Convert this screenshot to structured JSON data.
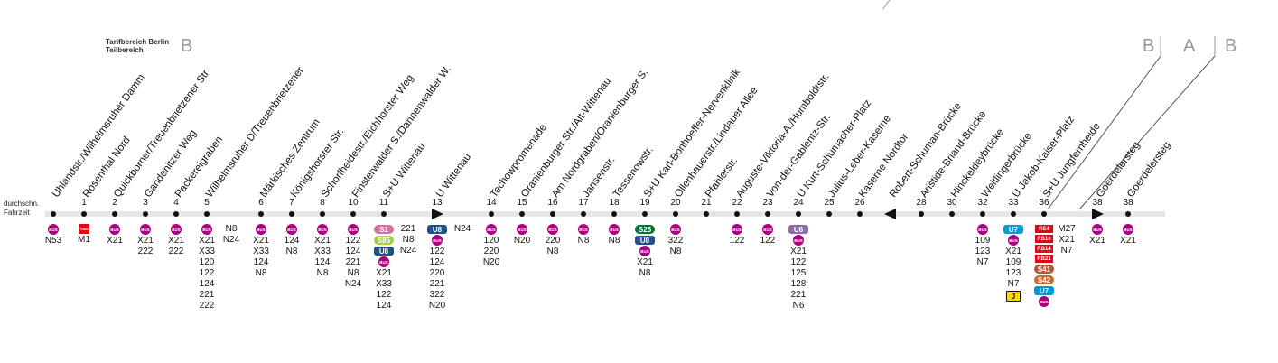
{
  "zone_label": {
    "line1": "Tarifbereich Berlin",
    "line2": "Teilbereich",
    "zone": "B"
  },
  "zone_markers": [
    "B",
    "A",
    "B"
  ],
  "side_label": {
    "line1": "durchschn.",
    "line2": "Fahrzeit"
  },
  "colors": {
    "bus": "#a5027d",
    "tram": "#e30613",
    "ubahn_u8": "#224f86",
    "ubahn_u7": "#009bd5",
    "ubahn_u6": "#8c6dab",
    "s1": "#dc6ba6",
    "s85": "#a6ce42",
    "s25": "#007734",
    "s41": "#ad5937",
    "s42": "#cc6a30",
    "rail": "#e30613",
    "j": "#ffd800"
  },
  "stops": [
    {
      "name": "Uhlandstr./Wilhelmsruher Damm",
      "time": ""
    },
    {
      "name": "Rosenthal Nord",
      "time": "1"
    },
    {
      "name": "Quickborner/Treuenbrietzener Str",
      "time": "2"
    },
    {
      "name": "Gandenitzer Weg",
      "time": "3"
    },
    {
      "name": "Packereigraben",
      "time": "4"
    },
    {
      "name": "Wilhelmsruher D/Treuenbrietzener",
      "time": "5"
    },
    {
      "name": "Märkisches Zentrum",
      "time": "6"
    },
    {
      "name": "Königshorster Str.",
      "time": "7"
    },
    {
      "name": "Schorfheidestr./Eichhorster Weg",
      "time": "8"
    },
    {
      "name": "Finsterwalder S./Dannenwalder W.",
      "time": "10"
    },
    {
      "name": "S+U Wittenau",
      "time": "11"
    },
    {
      "name": "U Wittenau",
      "time": "13"
    },
    {
      "name": "Techowpromenade",
      "time": "14"
    },
    {
      "name": "Oranienburger Str./Alt-Wittenau",
      "time": "15"
    },
    {
      "name": "Am Nordgraben/Oranienburger S.",
      "time": "16"
    },
    {
      "name": "Jansenstr.",
      "time": "17"
    },
    {
      "name": "Tessenowstr.",
      "time": "18"
    },
    {
      "name": "S+U Karl-Bonhoeffer-Nervenklinik",
      "time": "19"
    },
    {
      "name": "Ollenhauerstr./Lindauer Allee",
      "time": "20"
    },
    {
      "name": "Pfahlerstr.",
      "time": "21"
    },
    {
      "name": "Auguste-Viktoria-A./Humboldtstr.",
      "time": "22"
    },
    {
      "name": "Von-der-Gablentz-Str.",
      "time": "23"
    },
    {
      "name": "U Kurt-Schumacher-Platz",
      "time": "24"
    },
    {
      "name": "Julius-Leber-Kaserne",
      "time": "25"
    },
    {
      "name": "Kaserne Nordtor",
      "time": "26"
    },
    {
      "name": "Robert-Schuman-Brücke",
      "time": ""
    },
    {
      "name": "Aristide-Briand-Brücke",
      "time": "28"
    },
    {
      "name": "Hinckeldeybrücke",
      "time": "30"
    },
    {
      "name": "Weltlingerbrücke",
      "time": "32"
    },
    {
      "name": "U Jakob-Kaiser-Platz",
      "time": "33"
    },
    {
      "name": "S+U Jungfernheide",
      "time": "36"
    },
    {
      "name": "Goerdelersteg",
      "time": "38"
    },
    {
      "name": "Goerdelersteg",
      "time": "38"
    }
  ],
  "connections": {
    "s0": [
      "N53"
    ],
    "s1": [
      "M1"
    ],
    "s2": [
      "X21"
    ],
    "s3": [
      "X21",
      "222"
    ],
    "s4": [
      "X21",
      "222"
    ],
    "s5": [
      "X21",
      "X33",
      "120",
      "122",
      "124",
      "221",
      "222"
    ],
    "s5b": [
      "N8",
      "N24"
    ],
    "s6": [
      "X21",
      "X33",
      "124",
      "N8"
    ],
    "s7": [
      "124",
      "N8"
    ],
    "s8": [
      "X21",
      "X33",
      "124",
      "N8"
    ],
    "s9": [
      "122",
      "124",
      "221",
      "N8",
      "N24"
    ],
    "s10_s1": "S1",
    "s10_s85": "S85",
    "s10_u8": "U8",
    "s10": [
      "X21",
      "X33",
      "122",
      "124"
    ],
    "s10b": [
      "221",
      "N8",
      "N24"
    ],
    "s11_u8": "U8",
    "s11": [
      "122",
      "124",
      "220",
      "221",
      "322",
      "N20"
    ],
    "s11b": [
      "N24"
    ],
    "s12": [
      "120",
      "220",
      "N20"
    ],
    "s13": [
      "N20"
    ],
    "s14": [
      "220",
      "N8"
    ],
    "s15": [
      "N8"
    ],
    "s16": [
      "N8"
    ],
    "s17_s25": "S25",
    "s17_u8": "U8",
    "s17": [
      "X21",
      "N8"
    ],
    "s18": [
      "322",
      "N8"
    ],
    "s20": [
      "122"
    ],
    "s21": [
      "122"
    ],
    "s22_u6": "U6",
    "s22": [
      "X21",
      "122",
      "125",
      "128",
      "221",
      "N6"
    ],
    "s28": [
      "109",
      "123",
      "N7"
    ],
    "s29_u7": "U7",
    "s29": [
      "X21",
      "109",
      "123",
      "N7"
    ],
    "s29_j": "J",
    "s30_rail": [
      "RE4",
      "RB10",
      "RB14",
      "RB21"
    ],
    "s30_s41": "S41",
    "s30_s42": "S42",
    "s30_u7": "U7",
    "s30b": [
      "M27",
      "X21",
      "N7"
    ],
    "s31": [
      "X21"
    ],
    "s32": [
      "X21"
    ]
  },
  "icons": {
    "bus": "BUS",
    "tram": "Tram"
  }
}
